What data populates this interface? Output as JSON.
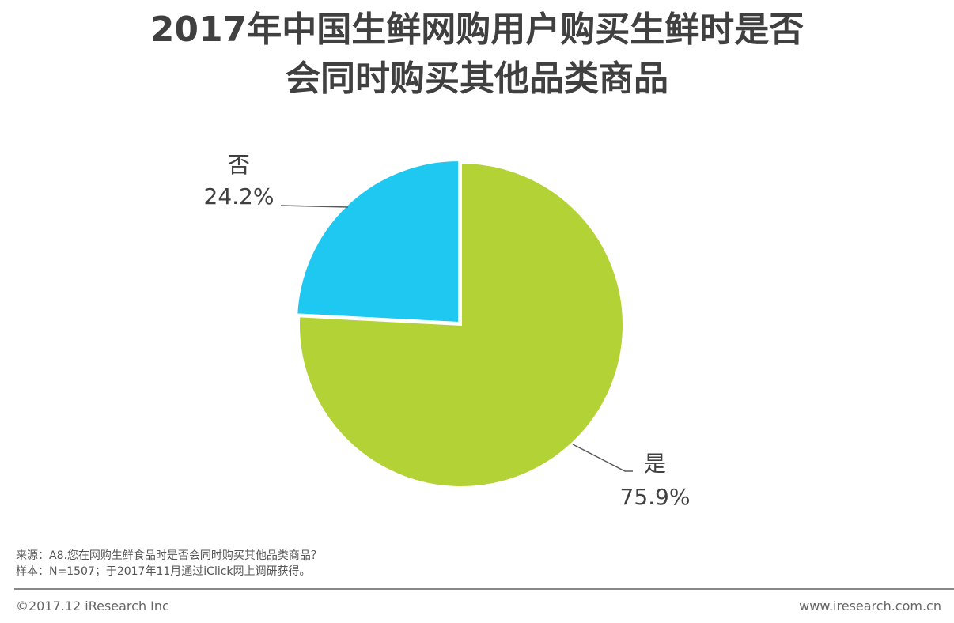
{
  "title_line1": "2017年中国生鲜网购用户购买生鲜时是否",
  "title_line2": "会同时购买其他品类商品",
  "chart_data": {
    "type": "pie",
    "title": "2017年中国生鲜网购用户购买生鲜时是否会同时购买其他品类商品",
    "slices": [
      {
        "label": "是",
        "value": 75.9,
        "value_label": "75.9%",
        "color": "#b2d235"
      },
      {
        "label": "否",
        "value": 24.2,
        "value_label": "24.2%",
        "color": "#1fc8f0"
      }
    ]
  },
  "source": "来源：A8.您在网购生鲜食品时是否会同时购买其他品类商品？",
  "sample": "样本：N=1507；于2017年11月通过iClick网上调研获得。",
  "copyright": "©2017.12 iResearch Inc",
  "website": "www.iresearch.com.cn"
}
